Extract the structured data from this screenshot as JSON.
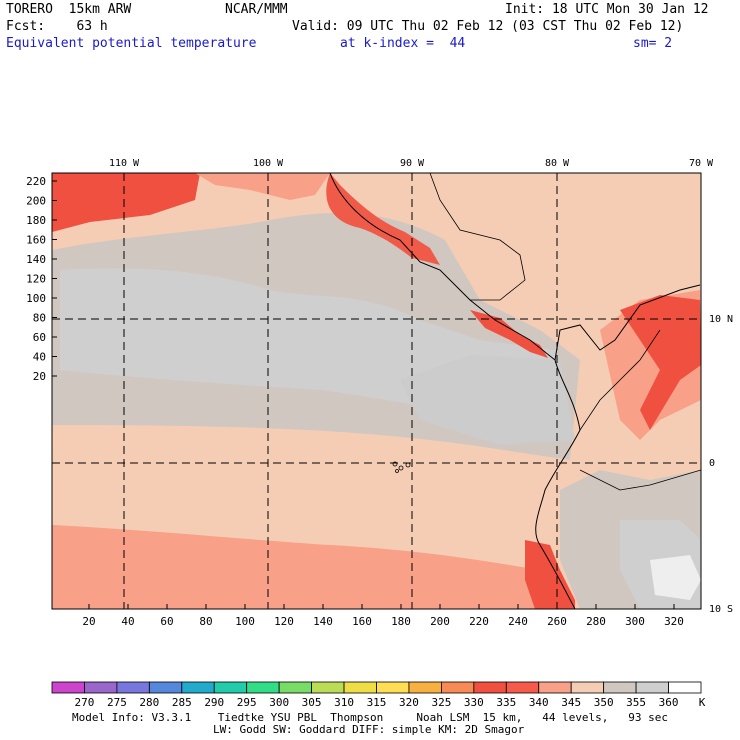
{
  "header": {
    "left_line1": "TORERO  15km ARW",
    "center_line1": "NCAR/MMM",
    "right_line1": "Init: 18 UTC Mon 30 Jan 12",
    "left_line2": "Fcst:    63 h",
    "right_line2": "Valid: 09 UTC Thu 02 Feb 12 (03 CST Thu 02 Feb 12)",
    "field_title": "Equivalent potential temperature",
    "level": "at k-index =  44",
    "smoothing": "sm= 2"
  },
  "map": {
    "top_lon_labels": [
      "110 W",
      "100 W",
      "90 W",
      "80 W",
      "70 W"
    ],
    "right_lat_labels": [
      "10 N",
      "0",
      "10 S"
    ],
    "left_grid_labels": [
      "220",
      "200",
      "180",
      "160",
      "140",
      "120",
      "100",
      "80",
      "60",
      "40",
      "20"
    ],
    "bottom_grid_labels": [
      "20",
      "40",
      "60",
      "80",
      "100",
      "120",
      "140",
      "160",
      "180",
      "200",
      "220",
      "240",
      "260",
      "280",
      "300",
      "320"
    ]
  },
  "colorbar": {
    "labels": [
      "270",
      "275",
      "280",
      "285",
      "290",
      "295",
      "300",
      "305",
      "310",
      "315",
      "320",
      "325",
      "330",
      "335",
      "340",
      "345",
      "350",
      "355",
      "360"
    ],
    "unit": "K",
    "colors": [
      "#cc44cc",
      "#9966cc",
      "#7777dd",
      "#5588dd",
      "#22aacc",
      "#22ccaa",
      "#33dd88",
      "#77dd66",
      "#bbdd55",
      "#eedd44",
      "#ffdd55",
      "#f8b040",
      "#f88a55",
      "#f05040",
      "#f55a4a",
      "#f8a088",
      "#f5cdb5",
      "#d0c7c0",
      "#cfcfcf",
      "#ffffff"
    ]
  },
  "footer": {
    "line1": "Model Info: V3.3.1    Tiedtke YSU PBL  Thompson     Noah LSM  15 km,   44 levels,   93 sec",
    "line2": "LW: Godd SW: Goddard DIFF: simple KM: 2D Smagor"
  }
}
